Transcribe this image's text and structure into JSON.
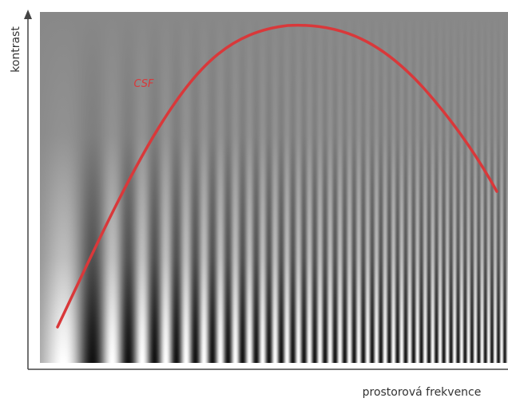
{
  "axes": {
    "y_label": "kontrast",
    "x_label": "prostorová frekvence"
  },
  "curve": {
    "label": "CSF"
  }
}
